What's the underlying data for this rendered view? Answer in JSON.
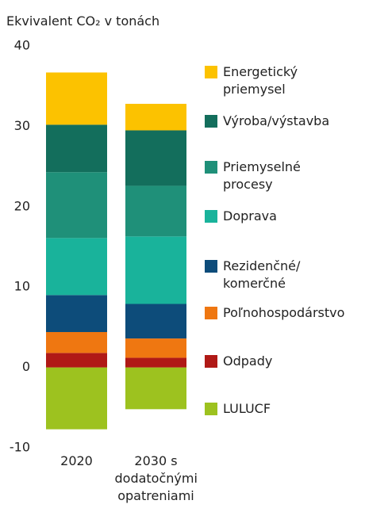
{
  "chart_data": {
    "type": "stacked_bar",
    "title": "Ekvivalent CO₂ v tonách",
    "categories": [
      "2020",
      "2030 s dodatočnými opatreniami"
    ],
    "series": [
      {
        "name": "Energetický priemysel",
        "color": "#fcc200",
        "values": [
          6.5,
          3.3
        ]
      },
      {
        "name": "Výroba/výstavba",
        "color": "#136e5c",
        "values": [
          5.9,
          6.9
        ]
      },
      {
        "name": "Priemyselné procesy",
        "color": "#1f9079",
        "values": [
          8.2,
          6.3
        ]
      },
      {
        "name": "Doprava",
        "color": "#19b39b",
        "values": [
          7.1,
          8.4
        ]
      },
      {
        "name": "Rezidenčné/ komerčné",
        "color": "#0d4c7a",
        "values": [
          4.6,
          4.3
        ]
      },
      {
        "name": "Poľnohospodárstvo",
        "color": "#ef7711",
        "values": [
          2.6,
          2.4
        ]
      },
      {
        "name": "Odpady",
        "color": "#b01916",
        "values": [
          1.8,
          1.2
        ]
      },
      {
        "name": "LULUCF",
        "color": "#9dc21f",
        "values": [
          -7.7,
          -5.2
        ]
      }
    ],
    "ylim": [
      -10,
      40
    ],
    "yticks": [
      -10,
      0,
      10,
      20,
      30,
      40
    ],
    "legend": "right"
  }
}
